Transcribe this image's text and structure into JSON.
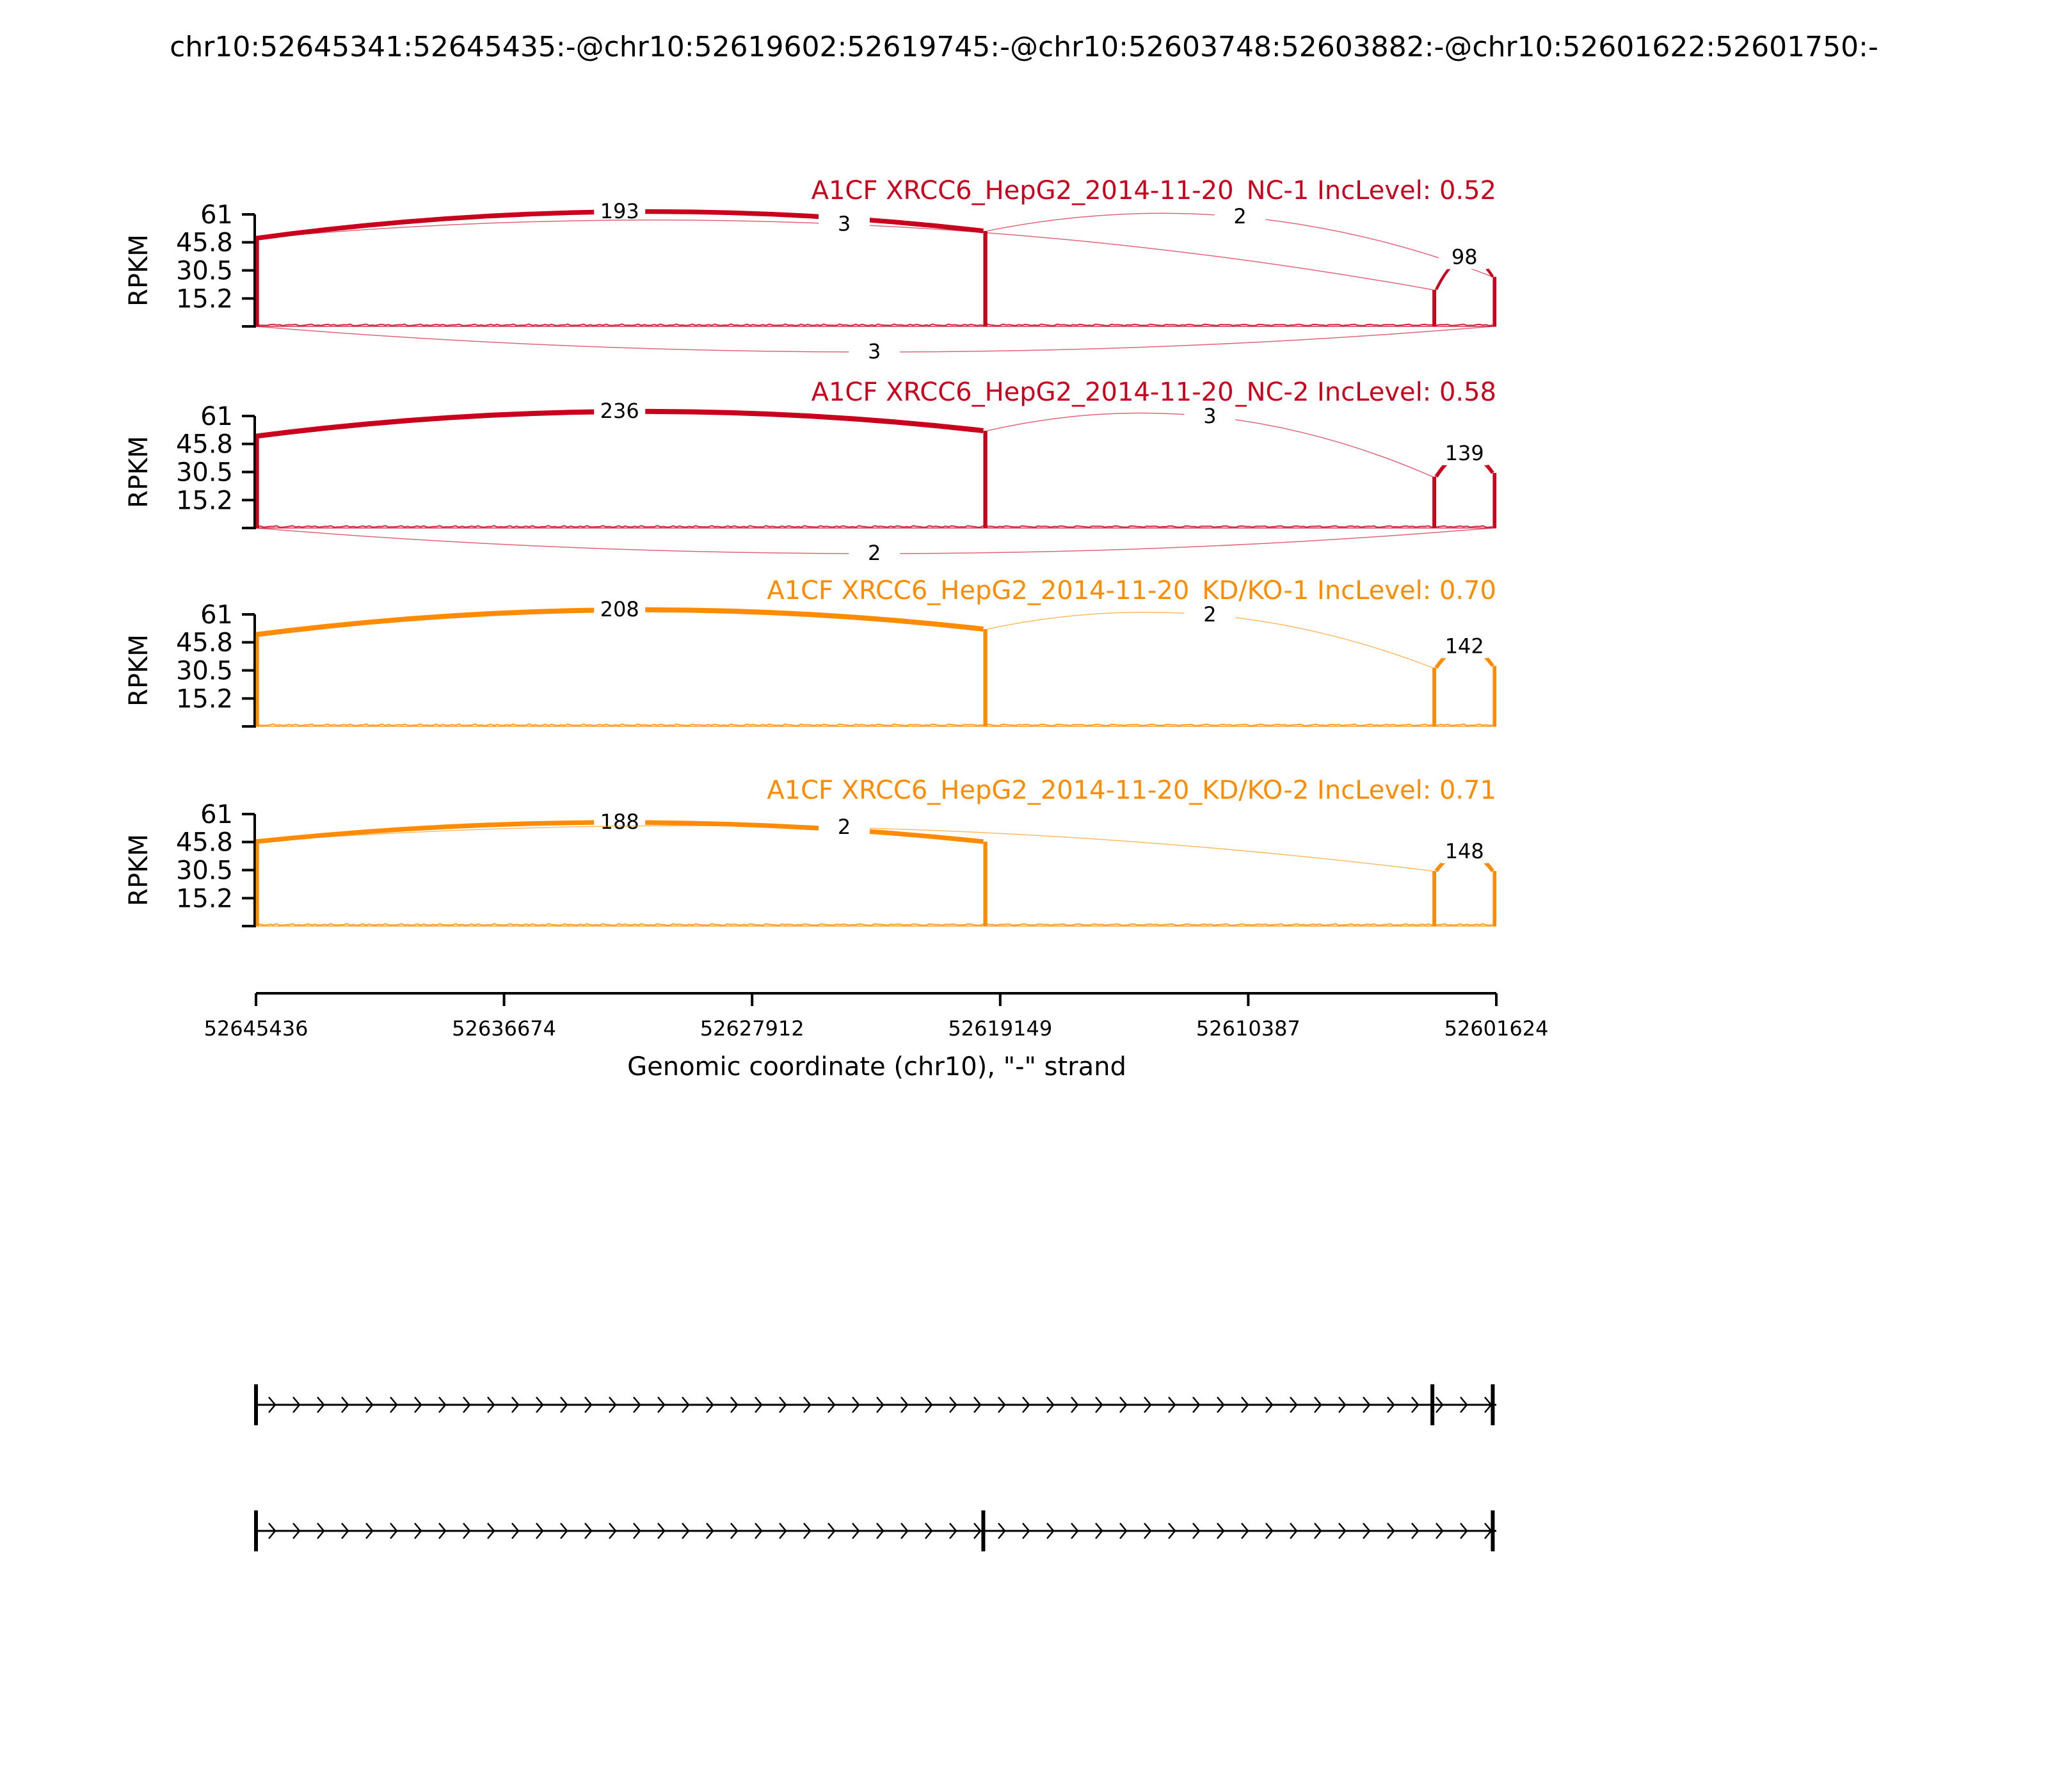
{
  "chart_data": {
    "type": "area",
    "title": "chr10:52645341:52645435:-@chr10:52619602:52619745:-@chr10:52603748:52603882:-@chr10:52601622:52601750:-",
    "ylabel": "RPKM",
    "xlabel": "Genomic coordinate (chr10), \"-\" strand",
    "xlim": [
      52645436,
      52601624
    ],
    "x_ticks": [
      52645436,
      52636674,
      52627912,
      52619149,
      52610387,
      52601624
    ],
    "x_tick_labels": [
      "52645436",
      "52636674",
      "52627912",
      "52619149",
      "52610387",
      "52601624"
    ],
    "y_ticks": [
      15.2,
      30.5,
      45.8,
      61
    ],
    "y_tick_labels": [
      "15.2",
      "30.5",
      "45.8",
      "61"
    ],
    "ylim": [
      0,
      61
    ],
    "grid": false,
    "tracks": [
      {
        "name": "A1CF XRCC6_HepG2_2014-11-20_NC-1 IncLevel: 0.52",
        "color": "#c8001e",
        "exon_heights": [
          48,
          52,
          20,
          27
        ],
        "junctions": [
          {
            "from": 52645436,
            "to": 52619745,
            "reads": 193,
            "side": "above"
          },
          {
            "from": 52645436,
            "to": 52603882,
            "reads": 3,
            "side": "above"
          },
          {
            "from": 52619602,
            "to": 52601750,
            "reads": 2,
            "side": "above"
          },
          {
            "from": 52603748,
            "to": 52601750,
            "reads": 98,
            "side": "above"
          },
          {
            "from": 52645436,
            "to": 52601750,
            "reads": 3,
            "side": "below"
          }
        ]
      },
      {
        "name": "A1CF XRCC6_HepG2_2014-11-20_NC-2 IncLevel: 0.58",
        "color": "#c8001e",
        "exon_heights": [
          50,
          53,
          28,
          30
        ],
        "junctions": [
          {
            "from": 52645436,
            "to": 52619745,
            "reads": 236,
            "side": "above"
          },
          {
            "from": 52619602,
            "to": 52603882,
            "reads": 3,
            "side": "above"
          },
          {
            "from": 52603748,
            "to": 52601750,
            "reads": 139,
            "side": "above"
          },
          {
            "from": 52645436,
            "to": 52601750,
            "reads": 2,
            "side": "below"
          }
        ]
      },
      {
        "name": "A1CF XRCC6_HepG2_2014-11-20_KD/KO-1 IncLevel: 0.70",
        "color": "#ff8c00",
        "exon_heights": [
          50,
          53,
          32,
          33
        ],
        "junctions": [
          {
            "from": 52645436,
            "to": 52619745,
            "reads": 208,
            "side": "above"
          },
          {
            "from": 52619602,
            "to": 52603882,
            "reads": 2,
            "side": "above"
          },
          {
            "from": 52603748,
            "to": 52601750,
            "reads": 142,
            "side": "above"
          }
        ]
      },
      {
        "name": "A1CF XRCC6_HepG2_2014-11-20_KD/KO-2 IncLevel: 0.71",
        "color": "#ff8c00",
        "exon_heights": [
          46,
          46,
          30,
          30
        ],
        "junctions": [
          {
            "from": 52645436,
            "to": 52619745,
            "reads": 188,
            "side": "above"
          },
          {
            "from": 52645436,
            "to": 52603882,
            "reads": 2,
            "side": "above"
          },
          {
            "from": 52603748,
            "to": 52601750,
            "reads": 148,
            "side": "above"
          }
        ]
      }
    ],
    "exons": [
      {
        "start": 52645341,
        "end": 52645435
      },
      {
        "start": 52619602,
        "end": 52619745
      },
      {
        "start": 52603748,
        "end": 52603882
      },
      {
        "start": 52601622,
        "end": 52601750
      }
    ],
    "isoforms": [
      {
        "exons": [
          [
            52645436,
            52645436
          ],
          [
            52603882,
            52603748
          ],
          [
            52601750,
            52601624
          ]
        ]
      },
      {
        "exons": [
          [
            52645436,
            52645436
          ],
          [
            52619745,
            52619602
          ],
          [
            52601750,
            52601624
          ]
        ]
      }
    ]
  }
}
